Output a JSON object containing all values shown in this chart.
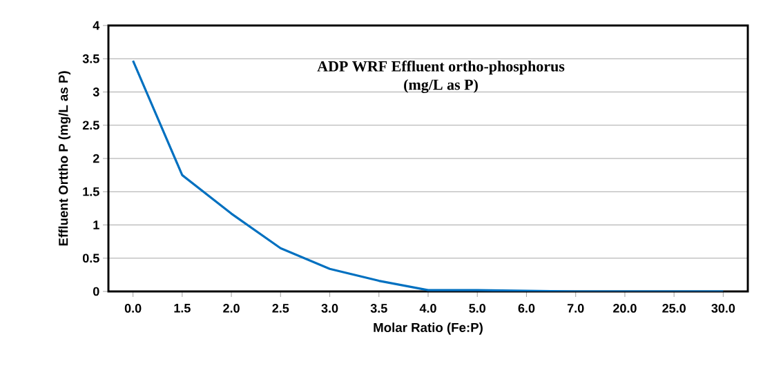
{
  "chart_data": {
    "type": "line",
    "title": "ADP WRF Effluent ortho-phosphorus",
    "subtitle": "(mg/L as P)",
    "xlabel": "Molar Ratio (Fe:P)",
    "ylabel": "Effluent Orttho P (mg/L as P)",
    "categories": [
      "0.0",
      "1.5",
      "2.0",
      "2.5",
      "3.0",
      "3.5",
      "4.0",
      "5.0",
      "6.0",
      "7.0",
      "20.0",
      "25.0",
      "30.0"
    ],
    "series": [
      {
        "color": "#0070c0",
        "values": [
          3.47,
          1.75,
          1.17,
          0.65,
          0.34,
          0.16,
          0.02,
          0.02,
          0.01,
          0,
          0,
          0,
          0
        ]
      }
    ],
    "ylim": [
      0,
      4
    ],
    "yticks": [
      0,
      0.5,
      1,
      1.5,
      2,
      2.5,
      3,
      3.5,
      4
    ],
    "grid": "y",
    "marker": "none",
    "line_style": "solid"
  }
}
